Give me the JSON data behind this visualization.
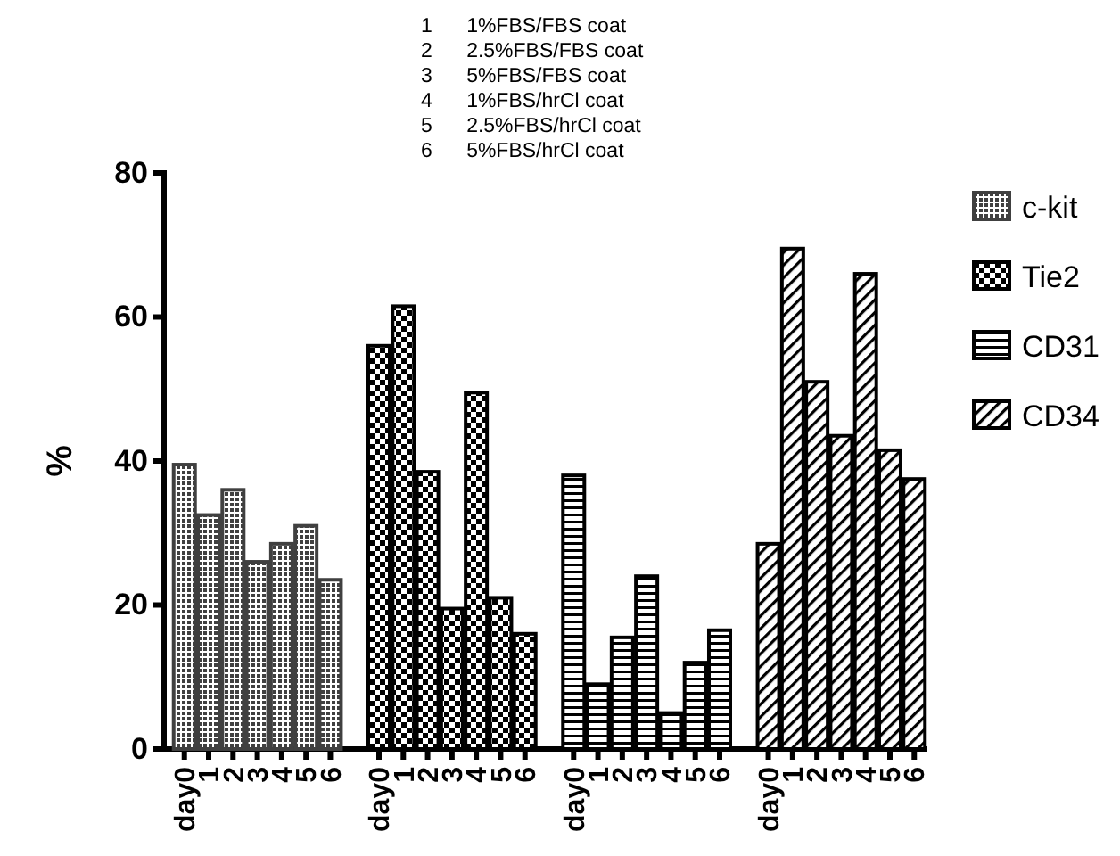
{
  "chart_data": {
    "type": "bar",
    "ylabel": "%",
    "categories": [
      "day0",
      "1",
      "2",
      "3",
      "4",
      "5",
      "6",
      null,
      "day0",
      "1",
      "2",
      "3",
      "4",
      "5",
      "6",
      null,
      "day0",
      "1",
      "2",
      "3",
      "4",
      "5",
      "6",
      null,
      "day0",
      "1",
      "2",
      "3",
      "4",
      "5",
      "6"
    ],
    "series": [
      {
        "name": "c-kit",
        "color": "#404040",
        "values": [
          39.5,
          32.5,
          36,
          26,
          28.5,
          31,
          23.5,
          null,
          null,
          null,
          null,
          null,
          null,
          null,
          null,
          null,
          null,
          null,
          null,
          null,
          null,
          null,
          null,
          null,
          null,
          null,
          null,
          null,
          null,
          null,
          null
        ]
      },
      {
        "name": "Tie2",
        "color": "#000000",
        "values": [
          null,
          null,
          null,
          null,
          null,
          null,
          null,
          null,
          56,
          61.5,
          38.5,
          19.5,
          49.5,
          21,
          16,
          null,
          null,
          null,
          null,
          null,
          null,
          null,
          null,
          null,
          null,
          null,
          null,
          null,
          null,
          null,
          null
        ]
      },
      {
        "name": "CD31",
        "color": "#000000",
        "values": [
          null,
          null,
          null,
          null,
          null,
          null,
          null,
          null,
          null,
          null,
          null,
          null,
          null,
          null,
          null,
          null,
          38,
          9,
          15.5,
          24,
          5,
          12,
          16.5,
          null,
          null,
          null,
          null,
          null,
          null,
          null,
          null
        ]
      },
      {
        "name": "CD34",
        "color": "#000000",
        "values": [
          null,
          null,
          null,
          null,
          null,
          null,
          null,
          null,
          null,
          null,
          null,
          null,
          null,
          null,
          null,
          null,
          null,
          null,
          null,
          null,
          null,
          null,
          null,
          null,
          28.5,
          69.5,
          51,
          43.5,
          66,
          41.5,
          37.5
        ]
      }
    ],
    "ylim": [
      0,
      80
    ],
    "yticks": [
      0,
      20,
      40,
      60,
      80
    ],
    "legend": "right",
    "grid": false,
    "annotations": [
      "1      1%FBS/FBS coat",
      "2      2.5%FBS/FBS coat",
      "3      5%FBS/FBS coat",
      "4      1%FBS/hrCl coat",
      "5      2.5%FBS/hrCl coat",
      "6      5%FBS/hrCl coat"
    ]
  }
}
